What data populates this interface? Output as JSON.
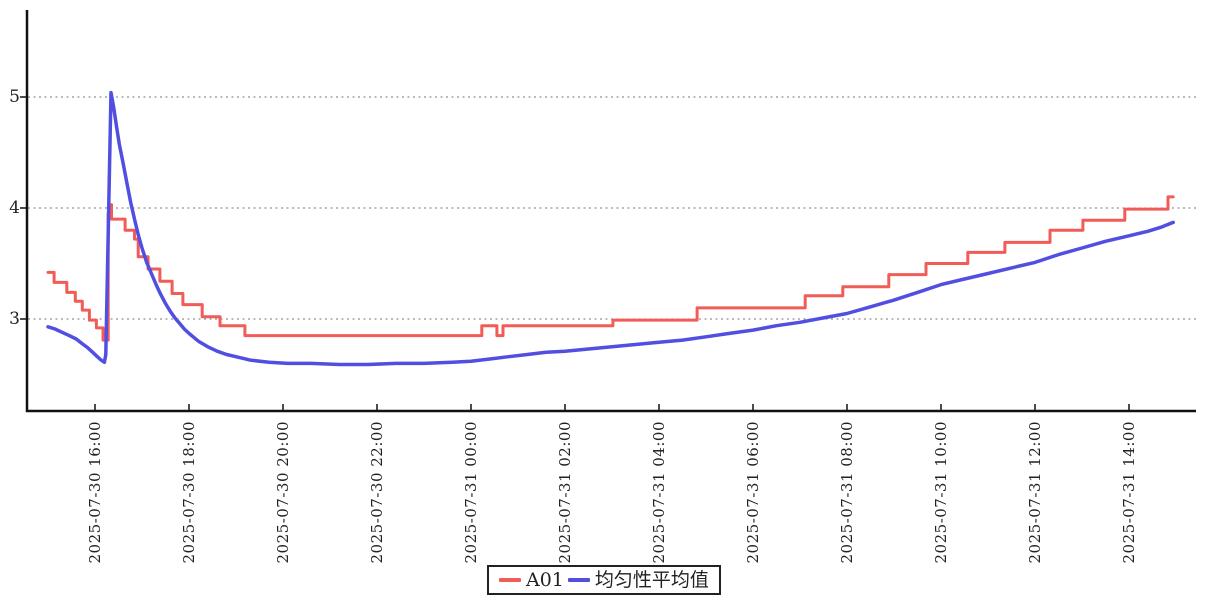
{
  "chart_data": {
    "type": "line",
    "title": "",
    "xlabel": "",
    "ylabel": "",
    "x_unit_hours_from_first_point": true,
    "x_domain_hours": [
      0,
      23.94
    ],
    "ylim": [
      2.18,
      5.78
    ],
    "y_ticks": [
      3,
      4,
      5
    ],
    "grid": "horizontal-dotted",
    "legend_position": "bottom-center",
    "x_ticks": [
      {
        "t": 1,
        "label": "2025-07-30 16:00"
      },
      {
        "t": 3,
        "label": "2025-07-30 18:00"
      },
      {
        "t": 5,
        "label": "2025-07-30 20:00"
      },
      {
        "t": 7,
        "label": "2025-07-30 22:00"
      },
      {
        "t": 9,
        "label": "2025-07-31 00:00"
      },
      {
        "t": 11,
        "label": "2025-07-31 02:00"
      },
      {
        "t": 13,
        "label": "2025-07-31 04:00"
      },
      {
        "t": 15,
        "label": "2025-07-31 06:00"
      },
      {
        "t": 17,
        "label": "2025-07-31 08:00"
      },
      {
        "t": 19,
        "label": "2025-07-31 10:00"
      },
      {
        "t": 21,
        "label": "2025-07-31 12:00"
      },
      {
        "t": 23,
        "label": "2025-07-31 14:00"
      }
    ],
    "series": [
      {
        "name": "A01",
        "color": "#f25c57",
        "style": "step",
        "points": [
          [
            0.0,
            3.42
          ],
          [
            0.13,
            3.42
          ],
          [
            0.13,
            3.33
          ],
          [
            0.4,
            3.33
          ],
          [
            0.4,
            3.24
          ],
          [
            0.58,
            3.24
          ],
          [
            0.58,
            3.16
          ],
          [
            0.73,
            3.16
          ],
          [
            0.73,
            3.08
          ],
          [
            0.88,
            3.08
          ],
          [
            0.88,
            2.99
          ],
          [
            1.03,
            2.99
          ],
          [
            1.03,
            2.92
          ],
          [
            1.17,
            2.92
          ],
          [
            1.17,
            2.81
          ],
          [
            1.28,
            2.81
          ],
          [
            1.28,
            3.95
          ],
          [
            1.32,
            3.95
          ],
          [
            1.32,
            4.03
          ],
          [
            1.35,
            4.03
          ],
          [
            1.35,
            3.9
          ],
          [
            1.64,
            3.9
          ],
          [
            1.64,
            3.8
          ],
          [
            1.84,
            3.8
          ],
          [
            1.84,
            3.72
          ],
          [
            1.92,
            3.72
          ],
          [
            1.92,
            3.56
          ],
          [
            2.13,
            3.56
          ],
          [
            2.13,
            3.45
          ],
          [
            2.38,
            3.45
          ],
          [
            2.38,
            3.34
          ],
          [
            2.64,
            3.34
          ],
          [
            2.64,
            3.23
          ],
          [
            2.87,
            3.23
          ],
          [
            2.87,
            3.13
          ],
          [
            3.28,
            3.13
          ],
          [
            3.28,
            3.02
          ],
          [
            3.66,
            3.02
          ],
          [
            3.66,
            2.94
          ],
          [
            4.19,
            2.94
          ],
          [
            4.19,
            2.85
          ],
          [
            9.23,
            2.85
          ],
          [
            9.23,
            2.94
          ],
          [
            9.55,
            2.94
          ],
          [
            9.55,
            2.85
          ],
          [
            9.68,
            2.85
          ],
          [
            9.68,
            2.94
          ],
          [
            12.02,
            2.94
          ],
          [
            12.02,
            2.99
          ],
          [
            13.81,
            2.99
          ],
          [
            13.81,
            3.1
          ],
          [
            16.11,
            3.1
          ],
          [
            16.11,
            3.21
          ],
          [
            16.91,
            3.21
          ],
          [
            16.91,
            3.29
          ],
          [
            17.89,
            3.29
          ],
          [
            17.89,
            3.4
          ],
          [
            18.68,
            3.4
          ],
          [
            18.68,
            3.5
          ],
          [
            19.57,
            3.5
          ],
          [
            19.57,
            3.6
          ],
          [
            20.36,
            3.6
          ],
          [
            20.36,
            3.69
          ],
          [
            21.32,
            3.69
          ],
          [
            21.32,
            3.8
          ],
          [
            22.02,
            3.8
          ],
          [
            22.02,
            3.89
          ],
          [
            22.91,
            3.89
          ],
          [
            22.91,
            3.99
          ],
          [
            23.83,
            3.99
          ],
          [
            23.83,
            4.1
          ],
          [
            23.94,
            4.1
          ]
        ]
      },
      {
        "name": "均匀性平均值",
        "color": "#514fe1",
        "style": "line",
        "points": [
          [
            0.0,
            2.93
          ],
          [
            0.15,
            2.91
          ],
          [
            0.3,
            2.88
          ],
          [
            0.45,
            2.85
          ],
          [
            0.6,
            2.82
          ],
          [
            0.72,
            2.78
          ],
          [
            0.85,
            2.74
          ],
          [
            0.95,
            2.7
          ],
          [
            1.05,
            2.66
          ],
          [
            1.13,
            2.63
          ],
          [
            1.2,
            2.61
          ],
          [
            1.23,
            2.68
          ],
          [
            1.34,
            5.04
          ],
          [
            1.4,
            4.9
          ],
          [
            1.46,
            4.73
          ],
          [
            1.52,
            4.57
          ],
          [
            1.6,
            4.4
          ],
          [
            1.68,
            4.22
          ],
          [
            1.76,
            4.05
          ],
          [
            1.84,
            3.9
          ],
          [
            1.92,
            3.76
          ],
          [
            2.0,
            3.64
          ],
          [
            2.1,
            3.51
          ],
          [
            2.2,
            3.41
          ],
          [
            2.3,
            3.31
          ],
          [
            2.4,
            3.22
          ],
          [
            2.5,
            3.14
          ],
          [
            2.6,
            3.07
          ],
          [
            2.7,
            3.01
          ],
          [
            2.8,
            2.96
          ],
          [
            2.9,
            2.91
          ],
          [
            3.0,
            2.87
          ],
          [
            3.2,
            2.8
          ],
          [
            3.4,
            2.75
          ],
          [
            3.6,
            2.71
          ],
          [
            3.8,
            2.68
          ],
          [
            4.0,
            2.66
          ],
          [
            4.3,
            2.63
          ],
          [
            4.7,
            2.61
          ],
          [
            5.1,
            2.6
          ],
          [
            5.6,
            2.6
          ],
          [
            6.2,
            2.59
          ],
          [
            6.8,
            2.59
          ],
          [
            7.4,
            2.6
          ],
          [
            8.0,
            2.6
          ],
          [
            8.6,
            2.61
          ],
          [
            9.0,
            2.62
          ],
          [
            9.4,
            2.64
          ],
          [
            9.8,
            2.66
          ],
          [
            10.2,
            2.68
          ],
          [
            10.6,
            2.7
          ],
          [
            11.0,
            2.71
          ],
          [
            11.5,
            2.73
          ],
          [
            12.0,
            2.75
          ],
          [
            12.5,
            2.77
          ],
          [
            13.0,
            2.79
          ],
          [
            13.5,
            2.81
          ],
          [
            14.0,
            2.84
          ],
          [
            14.5,
            2.87
          ],
          [
            15.0,
            2.9
          ],
          [
            15.5,
            2.94
          ],
          [
            16.0,
            2.97
          ],
          [
            16.5,
            3.01
          ],
          [
            17.0,
            3.05
          ],
          [
            17.5,
            3.11
          ],
          [
            18.0,
            3.17
          ],
          [
            18.5,
            3.24
          ],
          [
            19.0,
            3.31
          ],
          [
            19.5,
            3.36
          ],
          [
            20.0,
            3.41
          ],
          [
            20.5,
            3.46
          ],
          [
            21.0,
            3.51
          ],
          [
            21.5,
            3.58
          ],
          [
            22.0,
            3.64
          ],
          [
            22.5,
            3.7
          ],
          [
            23.0,
            3.75
          ],
          [
            23.4,
            3.79
          ],
          [
            23.7,
            3.83
          ],
          [
            23.94,
            3.87
          ]
        ]
      }
    ]
  },
  "legend": {
    "items": [
      {
        "label": "A01",
        "color": "#f25c57"
      },
      {
        "label": "均匀性平均值",
        "color": "#514fe1"
      }
    ]
  },
  "axes": {
    "y_tick_labels": [
      "5",
      "4",
      "3"
    ],
    "axis_color": "#111111",
    "grid_color": "#777777"
  }
}
